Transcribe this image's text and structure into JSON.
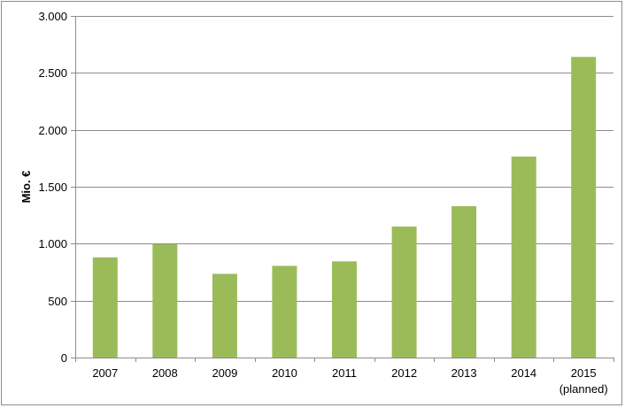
{
  "chart_data": {
    "type": "bar",
    "title": "",
    "xlabel": "",
    "ylabel": "Mio. €",
    "categories": [
      "2007",
      "2008",
      "2009",
      "2010",
      "2011",
      "2012",
      "2013",
      "2014",
      "2015"
    ],
    "category_sublabels": [
      "",
      "",
      "",
      "",
      "",
      "",
      "",
      "",
      "(planned)"
    ],
    "values": [
      880,
      995,
      735,
      805,
      845,
      1150,
      1330,
      1765,
      2640
    ],
    "ylim": [
      0,
      3000
    ],
    "yticks": [
      0,
      500,
      1000,
      1500,
      2000,
      2500,
      3000
    ],
    "ytick_labels": [
      "0",
      "500",
      "1.000",
      "1.500",
      "2.000",
      "2.500",
      "3.000"
    ],
    "grid": "horizontal",
    "legend": "none",
    "bar_color": "#9bbb59",
    "grid_color": "#8c8c8c",
    "axis_color": "#8c8c8c"
  }
}
